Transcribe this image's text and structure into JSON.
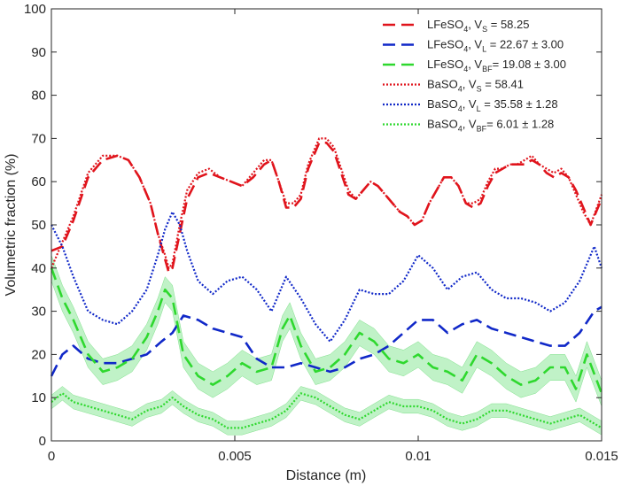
{
  "chart_data": {
    "type": "line",
    "title": "",
    "xlabel": "Distance (m)",
    "ylabel": "Volumetric fraction (%)",
    "xlim": [
      0,
      0.015
    ],
    "ylim": [
      0,
      100
    ],
    "grid": false,
    "legend_position": "top-right",
    "x_ticks": [
      {
        "value": 0,
        "label": "0"
      },
      {
        "value": 0.005,
        "label": "0.005"
      },
      {
        "value": 0.01,
        "label": "0.01"
      },
      {
        "value": 0.015,
        "label": "0.015"
      }
    ],
    "y_ticks": [
      {
        "value": 0,
        "label": "0"
      },
      {
        "value": 10,
        "label": "10"
      },
      {
        "value": 20,
        "label": "20"
      },
      {
        "value": 30,
        "label": "30"
      },
      {
        "value": 40,
        "label": "40"
      },
      {
        "value": 50,
        "label": "50"
      },
      {
        "value": 60,
        "label": "60"
      },
      {
        "value": 70,
        "label": "70"
      },
      {
        "value": 80,
        "label": "80"
      },
      {
        "value": 90,
        "label": "90"
      },
      {
        "value": 100,
        "label": "100"
      }
    ],
    "band_color": "#b5f0bd",
    "series": [
      {
        "name": "LFeSO4, VS = 58.25",
        "legend": {
          "base": "LFeSO",
          "sub1": "4",
          "mid": ", V",
          "sub2": "S",
          "tail": " = 58.25"
        },
        "color": "#e0141c",
        "dash": "14 7",
        "width": 2.6,
        "x": [
          0,
          0.0003,
          0.0006,
          0.001,
          0.0014,
          0.0018,
          0.0021,
          0.0024,
          0.0027,
          0.0029,
          0.0031,
          0.0032,
          0.0033,
          0.0035,
          0.0037,
          0.004,
          0.0043,
          0.0046,
          0.0049,
          0.0052,
          0.0055,
          0.0058,
          0.006,
          0.0062,
          0.0064,
          0.0066,
          0.0068,
          0.007,
          0.0073,
          0.0075,
          0.0077,
          0.0079,
          0.0081,
          0.0083,
          0.0085,
          0.0087,
          0.0089,
          0.0091,
          0.0093,
          0.0095,
          0.0097,
          0.0099,
          0.0101,
          0.0103,
          0.0105,
          0.0107,
          0.0109,
          0.0111,
          0.0113,
          0.0115,
          0.0117,
          0.0119,
          0.0121,
          0.0123,
          0.0125,
          0.0127,
          0.0129,
          0.0131,
          0.0133,
          0.0135,
          0.0137,
          0.0139,
          0.0141,
          0.0143,
          0.0145,
          0.0147,
          0.015
        ],
        "values": [
          44,
          45,
          51,
          61,
          65,
          66,
          65,
          61,
          55,
          48,
          42,
          39,
          40,
          48,
          56,
          61,
          62,
          61,
          60,
          59,
          61,
          64,
          65,
          60,
          54,
          54,
          56,
          63,
          69,
          69,
          67,
          62,
          57,
          56,
          58,
          60,
          59,
          57,
          55,
          53,
          52,
          50,
          51,
          55,
          58,
          61,
          61,
          59,
          55,
          54,
          55,
          59,
          62,
          63,
          64,
          64,
          64,
          65,
          64,
          62,
          61,
          62,
          61,
          58,
          54,
          50,
          56
        ]
      },
      {
        "name": "LFeSO4, VL = 22.67 ± 3.00",
        "legend": {
          "base": "LFeSO",
          "sub1": "4",
          "mid": ", V",
          "sub2": "L",
          "tail": " = 22.67 ± 3.00"
        },
        "color": "#1028c8",
        "dash": "14 7",
        "width": 2.6,
        "x": [
          0,
          0.0003,
          0.0006,
          0.001,
          0.0014,
          0.0018,
          0.0022,
          0.0026,
          0.003,
          0.0033,
          0.0036,
          0.004,
          0.0044,
          0.0048,
          0.0052,
          0.0056,
          0.006,
          0.0064,
          0.0068,
          0.0072,
          0.0076,
          0.008,
          0.0084,
          0.0088,
          0.0092,
          0.0096,
          0.01,
          0.0104,
          0.0108,
          0.0112,
          0.0116,
          0.012,
          0.0124,
          0.0128,
          0.0132,
          0.0136,
          0.014,
          0.0144,
          0.0148,
          0.015
        ],
        "values": [
          15,
          20,
          22,
          19,
          18,
          18,
          19,
          20,
          23,
          25,
          29,
          28,
          26,
          25,
          24,
          19,
          17,
          17,
          18,
          17,
          16,
          17,
          19,
          20,
          22,
          25,
          28,
          28,
          25,
          27,
          28,
          26,
          25,
          24,
          23,
          22,
          22,
          25,
          30,
          31
        ]
      },
      {
        "name": "LFeSO4, VBF = 19.08 ± 3.00",
        "legend": {
          "base": "LFeSO",
          "sub1": "4",
          "mid": ", V",
          "sub2": "BF",
          "tail": "= 19.08 ± 3.00"
        },
        "color": "#2ed82e",
        "dash": "14 7",
        "width": 2.6,
        "band": 3.0,
        "x": [
          0,
          0.0003,
          0.0006,
          0.001,
          0.0014,
          0.0018,
          0.0022,
          0.0026,
          0.0029,
          0.0031,
          0.0033,
          0.0036,
          0.004,
          0.0044,
          0.0048,
          0.0052,
          0.0056,
          0.006,
          0.0063,
          0.0065,
          0.0068,
          0.0072,
          0.0076,
          0.008,
          0.0084,
          0.0088,
          0.0092,
          0.0096,
          0.01,
          0.0104,
          0.0108,
          0.0112,
          0.0116,
          0.012,
          0.0124,
          0.0128,
          0.0132,
          0.0136,
          0.014,
          0.0143,
          0.0146,
          0.015
        ],
        "values": [
          40,
          33,
          28,
          20,
          16,
          17,
          19,
          24,
          30,
          35,
          33,
          20,
          15,
          13,
          15,
          18,
          16,
          17,
          26,
          29,
          22,
          16,
          17,
          20,
          25,
          23,
          19,
          18,
          20,
          17,
          16,
          14,
          20,
          18,
          15,
          13,
          14,
          17,
          17,
          12,
          20,
          11
        ]
      },
      {
        "name": "BaSO4, VS = 58.41",
        "legend": {
          "base": "BaSO",
          "sub1": "4",
          "mid": ", V",
          "sub2": "S",
          "tail": " = 58.41"
        },
        "color": "#e0141c",
        "dash": "2 2",
        "width": 2.2,
        "x": [
          0,
          0.0003,
          0.0006,
          0.001,
          0.0014,
          0.0018,
          0.0021,
          0.0024,
          0.0027,
          0.0029,
          0.0031,
          0.0032,
          0.0033,
          0.0035,
          0.0037,
          0.004,
          0.0043,
          0.0046,
          0.0049,
          0.0052,
          0.0055,
          0.0058,
          0.006,
          0.0062,
          0.0064,
          0.0066,
          0.0068,
          0.007,
          0.0073,
          0.0075,
          0.0077,
          0.0079,
          0.0081,
          0.0083,
          0.0085,
          0.0087,
          0.0089,
          0.0091,
          0.0093,
          0.0095,
          0.0097,
          0.0099,
          0.0101,
          0.0103,
          0.0105,
          0.0107,
          0.0109,
          0.0111,
          0.0113,
          0.0115,
          0.0117,
          0.0119,
          0.0121,
          0.0123,
          0.0125,
          0.0127,
          0.0129,
          0.0131,
          0.0133,
          0.0135,
          0.0137,
          0.0139,
          0.0141,
          0.0143,
          0.0145,
          0.0147,
          0.015
        ],
        "values": [
          40,
          46,
          52,
          62,
          66,
          66,
          65,
          61,
          55,
          48,
          43,
          40,
          41,
          50,
          58,
          62,
          63,
          61,
          60,
          59,
          62,
          65,
          65,
          60,
          55,
          55,
          57,
          64,
          70,
          70,
          68,
          63,
          58,
          56,
          58,
          60,
          59,
          57,
          55,
          53,
          52,
          50,
          51,
          55,
          58,
          61,
          61,
          59,
          55,
          55,
          56,
          60,
          63,
          63,
          64,
          64,
          65,
          66,
          64,
          63,
          62,
          63,
          61,
          57,
          53,
          50,
          57
        ]
      },
      {
        "name": "BaSO4, VL = 35.58 ± 1.28",
        "legend": {
          "base": "BaSO",
          "sub1": "4",
          "mid": ", V",
          "sub2": "L",
          "tail": " = 35.58 ± 1.28"
        },
        "color": "#1028c8",
        "dash": "2 2",
        "width": 2.2,
        "x": [
          0,
          0.0003,
          0.0006,
          0.001,
          0.0014,
          0.0018,
          0.0022,
          0.0026,
          0.0029,
          0.0031,
          0.0033,
          0.0035,
          0.0037,
          0.004,
          0.0044,
          0.0048,
          0.0052,
          0.0056,
          0.006,
          0.0064,
          0.0068,
          0.0072,
          0.0076,
          0.008,
          0.0084,
          0.0088,
          0.0092,
          0.0096,
          0.01,
          0.0104,
          0.0108,
          0.0112,
          0.0116,
          0.012,
          0.0124,
          0.0128,
          0.0132,
          0.0136,
          0.014,
          0.0144,
          0.0148,
          0.015
        ],
        "values": [
          50,
          45,
          38,
          30,
          28,
          27,
          30,
          35,
          43,
          49,
          53,
          50,
          44,
          37,
          34,
          37,
          38,
          35,
          30,
          38,
          33,
          27,
          23,
          28,
          35,
          34,
          34,
          37,
          43,
          40,
          35,
          38,
          39,
          35,
          33,
          33,
          32,
          30,
          32,
          37,
          45,
          40
        ]
      },
      {
        "name": "BaSO4, VBF = 6.01 ± 1.28",
        "legend": {
          "base": "BaSO",
          "sub1": "4",
          "mid": ", V",
          "sub2": "BF",
          "tail": "= 6.01 ± 1.28"
        },
        "color": "#2ed82e",
        "dash": "2 2",
        "width": 2.2,
        "band": 1.6,
        "x": [
          0,
          0.0003,
          0.0006,
          0.001,
          0.0014,
          0.0018,
          0.0022,
          0.0026,
          0.003,
          0.0033,
          0.0036,
          0.004,
          0.0044,
          0.0048,
          0.0052,
          0.0056,
          0.006,
          0.0064,
          0.0068,
          0.0072,
          0.0076,
          0.008,
          0.0084,
          0.0088,
          0.0092,
          0.0096,
          0.01,
          0.0104,
          0.0108,
          0.0112,
          0.0116,
          0.012,
          0.0124,
          0.0128,
          0.0132,
          0.0136,
          0.014,
          0.0144,
          0.0148,
          0.015
        ],
        "values": [
          9,
          11,
          9,
          8,
          7,
          6,
          5,
          7,
          8,
          10,
          8,
          6,
          5,
          3,
          3,
          4,
          5,
          7,
          11,
          10,
          8,
          6,
          5,
          7,
          9,
          8,
          8,
          7,
          5,
          4,
          5,
          7,
          7,
          6,
          5,
          4,
          5,
          6,
          4,
          3
        ]
      }
    ]
  }
}
